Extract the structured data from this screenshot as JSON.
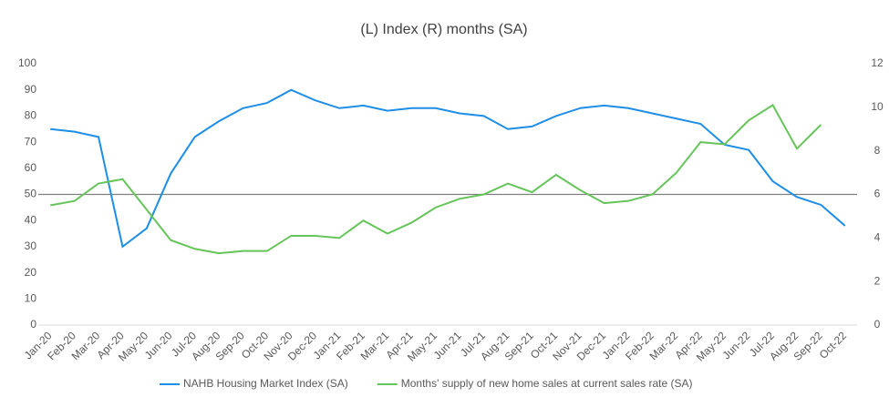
{
  "chart_data": {
    "type": "line",
    "title": "(L) Index (R) months (SA)",
    "categories": [
      "Jan-20",
      "Feb-20",
      "Mar-20",
      "Apr-20",
      "May-20",
      "Jun-20",
      "Jul-20",
      "Aug-20",
      "Sep-20",
      "Oct-20",
      "Nov-20",
      "Dec-20",
      "Jan-21",
      "Feb-21",
      "Mar-21",
      "Apr-21",
      "May-21",
      "Jun-21",
      "Jul-21",
      "Aug-21",
      "Sep-21",
      "Oct-21",
      "Nov-21",
      "Dec-21",
      "Jan-22",
      "Feb-22",
      "Mar-22",
      "Apr-22",
      "May-22",
      "Jun-22",
      "Jul-22",
      "Aug-22",
      "Sep-22",
      "Oct-22"
    ],
    "series": [
      {
        "name": "NAHB Housing Market Index (SA)",
        "color": "#1f8ee6",
        "axis": "y",
        "values": [
          75,
          74,
          72,
          30,
          37,
          58,
          72,
          78,
          83,
          85,
          90,
          86,
          83,
          84,
          82,
          83,
          83,
          81,
          80,
          75,
          76,
          80,
          83,
          84,
          83,
          81,
          79,
          77,
          69,
          67,
          55,
          49,
          46,
          38
        ]
      },
      {
        "name": "Months' supply of new home sales at current sales rate (SA)",
        "color": "#66c45a",
        "axis": "y2",
        "values": [
          5.5,
          5.7,
          6.5,
          6.7,
          5.3,
          3.9,
          3.5,
          3.3,
          3.4,
          3.4,
          4.1,
          4.1,
          4.0,
          4.8,
          4.2,
          4.7,
          5.4,
          5.8,
          6.0,
          6.5,
          6.1,
          6.9,
          6.2,
          5.6,
          5.7,
          6.0,
          7.0,
          8.4,
          8.3,
          9.4,
          10.1,
          8.1,
          9.2,
          null
        ]
      }
    ],
    "ylim": [
      0,
      100
    ],
    "yticks": [
      0,
      10,
      20,
      30,
      40,
      50,
      60,
      70,
      80,
      90,
      100
    ],
    "y2lim": [
      0,
      12
    ],
    "y2ticks": [
      0,
      2,
      4,
      6,
      8,
      10,
      12
    ],
    "reference_line": 50,
    "reference_color": "#7f7f7f",
    "legend": "bottom"
  }
}
